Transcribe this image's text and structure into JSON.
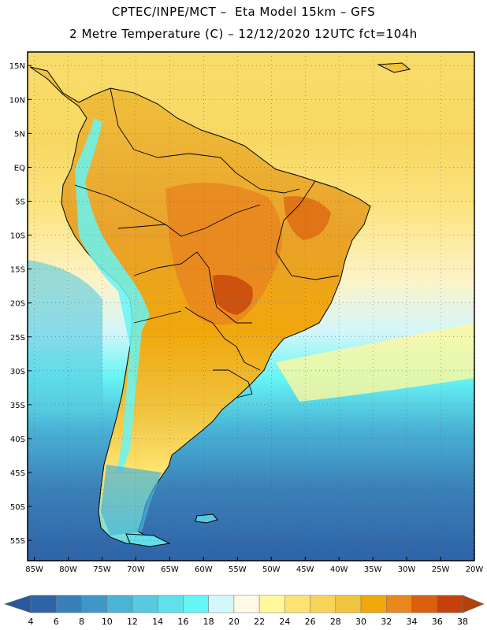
{
  "header": {
    "line1": "CPTEC/INPE/MCT –  Eta Model 15km – GFS",
    "line2": "2 Metre Temperature (C) – 12/12/2020 12UTC fct=104h"
  },
  "map": {
    "lon_range": [
      -86,
      -20
    ],
    "lat_range": [
      -58,
      17
    ],
    "lat_ticks": [
      {
        "value": 15,
        "label": "15N"
      },
      {
        "value": 10,
        "label": "10N"
      },
      {
        "value": 5,
        "label": "5N"
      },
      {
        "value": 0,
        "label": "EQ"
      },
      {
        "value": -5,
        "label": "5S"
      },
      {
        "value": -10,
        "label": "10S"
      },
      {
        "value": -15,
        "label": "15S"
      },
      {
        "value": -20,
        "label": "20S"
      },
      {
        "value": -25,
        "label": "25S"
      },
      {
        "value": -30,
        "label": "30S"
      },
      {
        "value": -35,
        "label": "35S"
      },
      {
        "value": -40,
        "label": "40S"
      },
      {
        "value": -45,
        "label": "45S"
      },
      {
        "value": -50,
        "label": "50S"
      },
      {
        "value": -55,
        "label": "55S"
      }
    ],
    "lon_ticks": [
      {
        "value": -85,
        "label": "85W"
      },
      {
        "value": -80,
        "label": "80W"
      },
      {
        "value": -75,
        "label": "75W"
      },
      {
        "value": -70,
        "label": "70W"
      },
      {
        "value": -65,
        "label": "65W"
      },
      {
        "value": -60,
        "label": "60W"
      },
      {
        "value": -55,
        "label": "55W"
      },
      {
        "value": -50,
        "label": "50W"
      },
      {
        "value": -45,
        "label": "45W"
      },
      {
        "value": -40,
        "label": "40W"
      },
      {
        "value": -35,
        "label": "35W"
      },
      {
        "value": -30,
        "label": "30W"
      },
      {
        "value": -25,
        "label": "25W"
      },
      {
        "value": -20,
        "label": "20W"
      }
    ]
  },
  "colorbar": {
    "labels": [
      "4",
      "6",
      "8",
      "10",
      "12",
      "14",
      "16",
      "18",
      "20",
      "22",
      "24",
      "26",
      "28",
      "30",
      "32",
      "34",
      "36",
      "38"
    ],
    "colors": [
      "#2e63a8",
      "#3a80b8",
      "#3f97c8",
      "#4ab3d6",
      "#58c9e0",
      "#5fe0ea",
      "#66f5f5",
      "#d3f6fa",
      "#fdf9e4",
      "#fff79c",
      "#fde472",
      "#f8d35a",
      "#f0c43f",
      "#f0a70c",
      "#e9861e",
      "#db5f0e",
      "#c6420c"
    ],
    "low_color": "#2a5a9e",
    "high_color": "#b2410c"
  }
}
